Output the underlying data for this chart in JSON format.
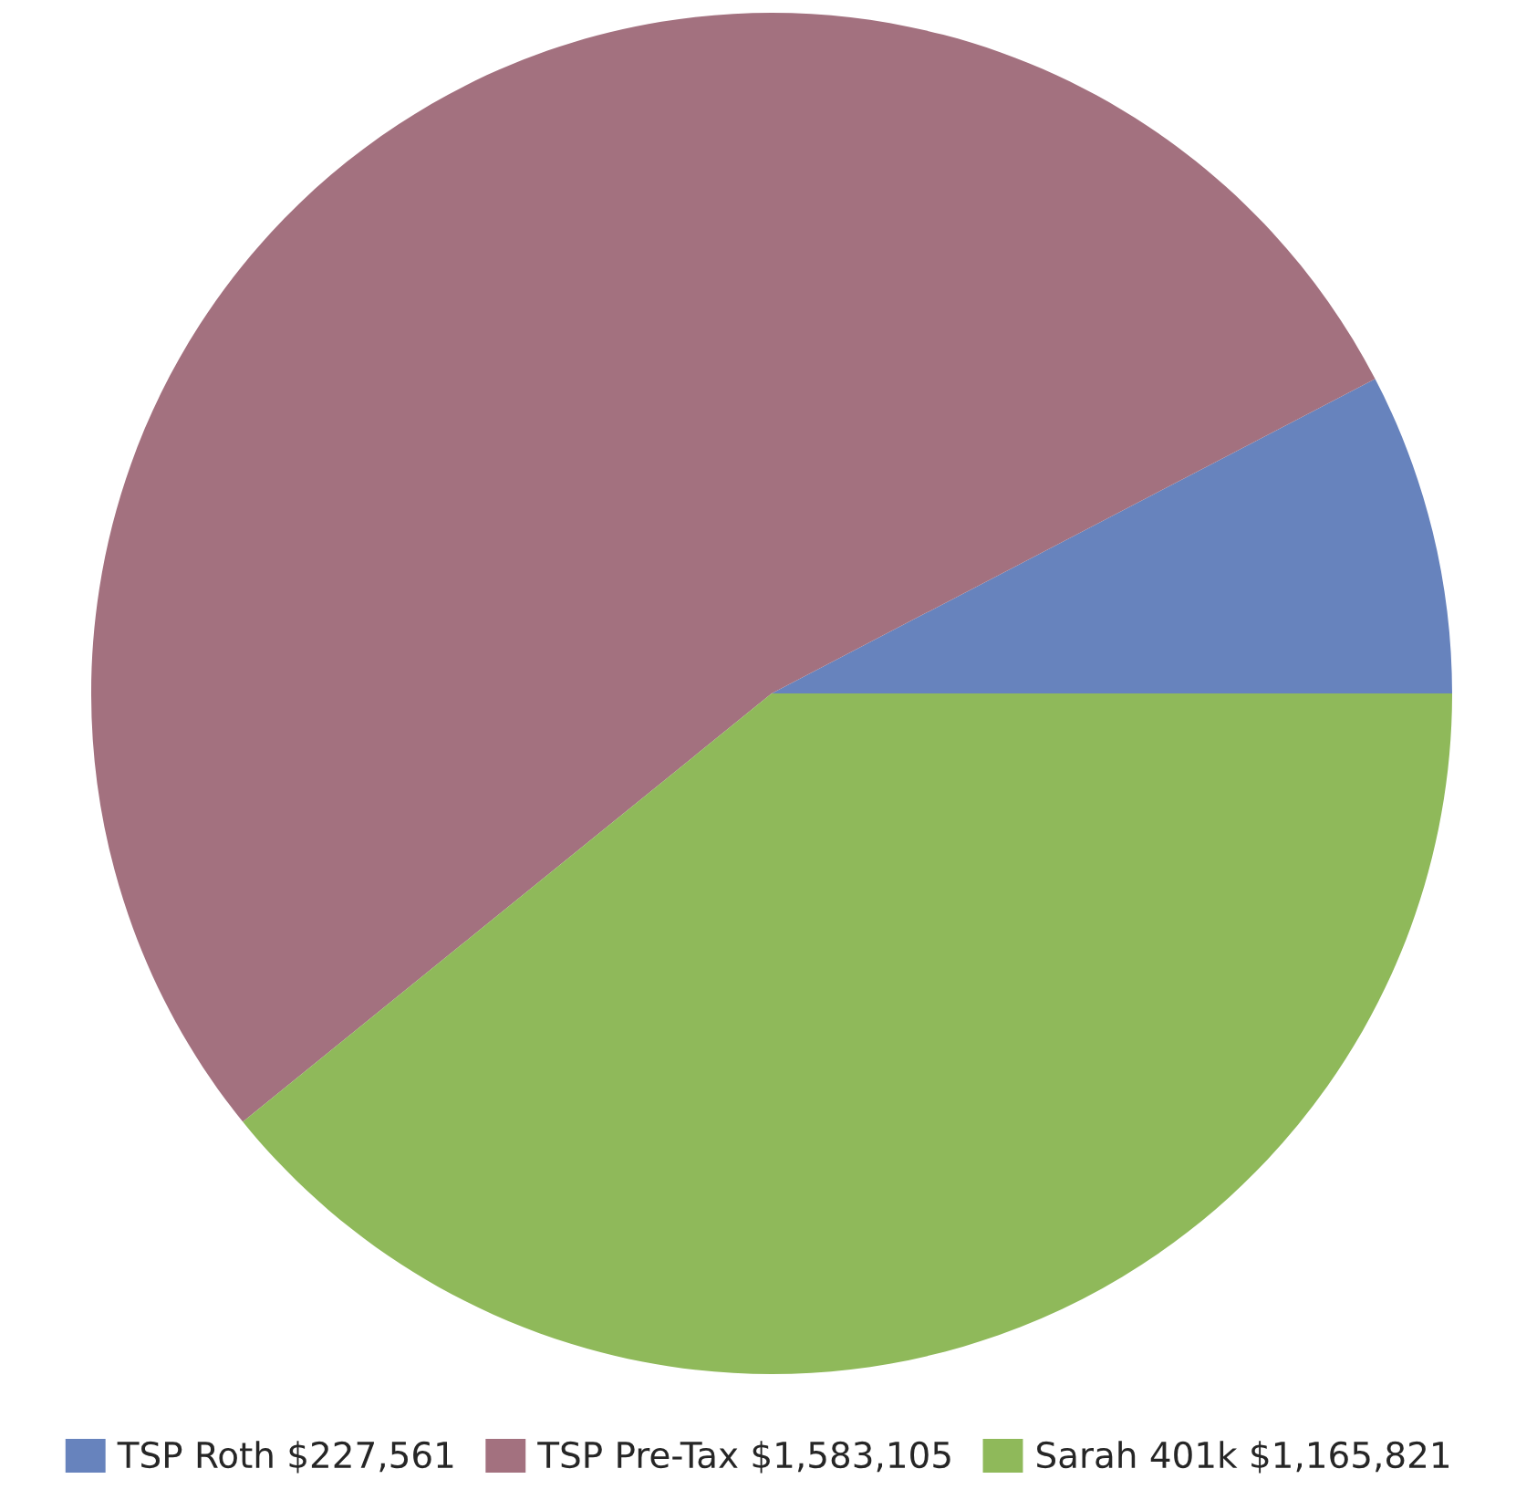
{
  "chart_data": {
    "type": "pie",
    "categories": [
      "TSP Roth $227,561",
      "TSP Pre-Tax $1,583,105",
      "Sarah 401k $1,165,821"
    ],
    "values": [
      227561,
      1583105,
      1165821
    ],
    "colors": [
      "#6783bd",
      "#a3717f",
      "#8fb95a"
    ],
    "legend": "bottom"
  }
}
